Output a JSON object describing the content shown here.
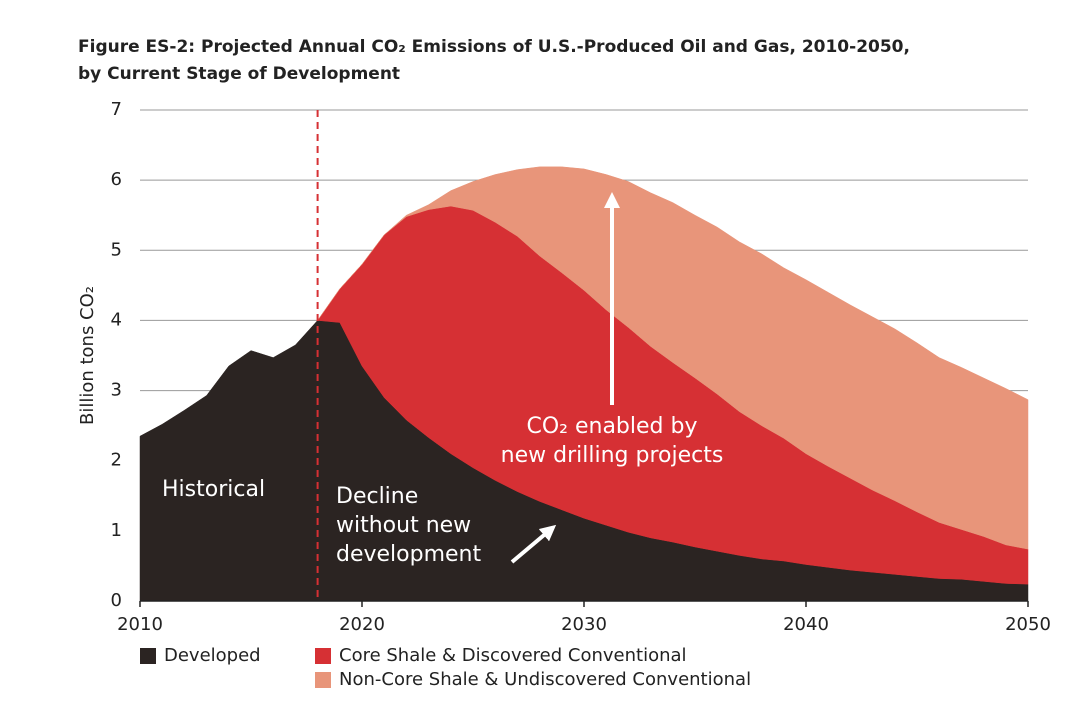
{
  "chart_data": {
    "type": "stacked_area",
    "title": [
      "Figure ES-2: Projected Annual CO₂ Emissions of U.S.-Produced Oil and Gas, 2010-2050,",
      "by Current Stage of Development"
    ],
    "y_label": "Billion tons CO₂",
    "x": [
      2010,
      2011,
      2012,
      2013,
      2014,
      2015,
      2016,
      2017,
      2018,
      2019,
      2020,
      2021,
      2022,
      2023,
      2024,
      2025,
      2026,
      2027,
      2028,
      2029,
      2030,
      2031,
      2032,
      2033,
      2034,
      2035,
      2036,
      2037,
      2038,
      2039,
      2040,
      2041,
      2042,
      2043,
      2044,
      2045,
      2046,
      2047,
      2048,
      2049,
      2050
    ],
    "series": [
      {
        "name": "Developed",
        "color": "#2b2422",
        "values": [
          2.35,
          2.52,
          2.72,
          2.93,
          3.35,
          3.57,
          3.47,
          3.65,
          4.0,
          3.97,
          3.35,
          2.9,
          2.58,
          2.33,
          2.1,
          1.9,
          1.72,
          1.56,
          1.42,
          1.3,
          1.18,
          1.08,
          0.98,
          0.9,
          0.84,
          0.77,
          0.71,
          0.65,
          0.6,
          0.57,
          0.52,
          0.48,
          0.44,
          0.41,
          0.38,
          0.35,
          0.32,
          0.31,
          0.28,
          0.25,
          0.24
        ]
      },
      {
        "name": "Core Shale & Discovered Conventional",
        "color": "#d63034",
        "values": [
          null,
          null,
          null,
          null,
          null,
          null,
          null,
          null,
          0,
          0.48,
          1.45,
          2.32,
          2.9,
          3.25,
          3.53,
          3.67,
          3.68,
          3.64,
          3.5,
          3.38,
          3.25,
          3.07,
          2.92,
          2.73,
          2.56,
          2.41,
          2.24,
          2.05,
          1.9,
          1.75,
          1.58,
          1.44,
          1.31,
          1.17,
          1.05,
          0.92,
          0.8,
          0.71,
          0.64,
          0.55,
          0.5
        ]
      },
      {
        "name": "Non-Core Shale & Undiscovered Conventional",
        "color": "#e8957a",
        "values": [
          null,
          null,
          null,
          null,
          null,
          null,
          null,
          null,
          0,
          0,
          0,
          0,
          0.02,
          0.07,
          0.22,
          0.41,
          0.68,
          0.95,
          1.27,
          1.51,
          1.73,
          1.93,
          2.08,
          2.19,
          2.28,
          2.32,
          2.38,
          2.42,
          2.45,
          2.43,
          2.48,
          2.48,
          2.47,
          2.47,
          2.45,
          2.41,
          2.35,
          2.31,
          2.26,
          2.23,
          2.13
        ]
      }
    ],
    "xlim": [
      2010,
      2050
    ],
    "xticks": [
      2010,
      2020,
      2030,
      2040,
      2050
    ],
    "ylim": [
      0,
      7
    ],
    "yticks": [
      0,
      1,
      2,
      3,
      4,
      5,
      6,
      7
    ],
    "grid": true,
    "vline_x": 2018,
    "legend": "bottom-left",
    "annotations": [
      {
        "lines": [
          "Historical"
        ]
      },
      {
        "lines": [
          "Decline",
          "without new",
          "development"
        ]
      },
      {
        "lines": [
          "CO₂ enabled by",
          "new drilling projects"
        ]
      }
    ]
  }
}
